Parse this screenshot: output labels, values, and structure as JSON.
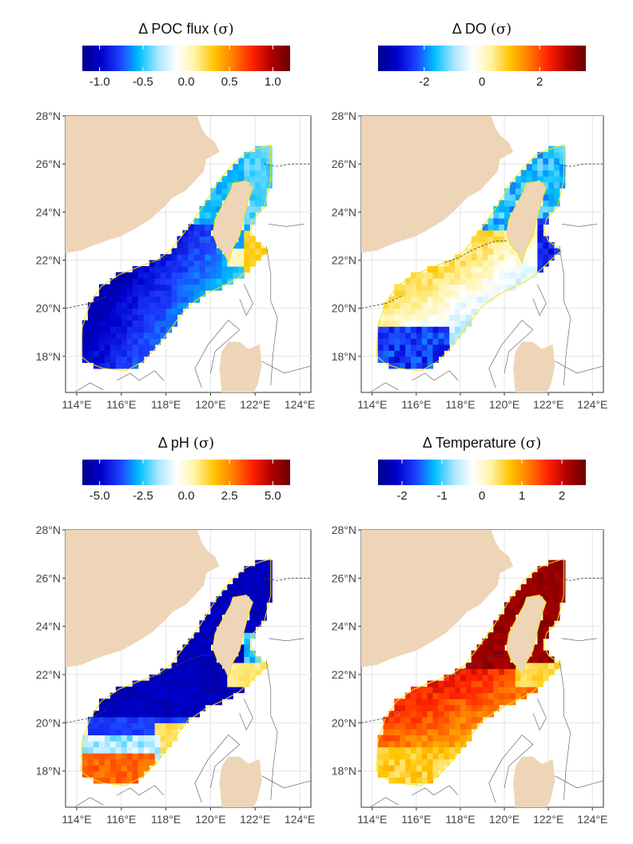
{
  "panels": [
    {
      "id": "poc",
      "title_prefix": "Δ",
      "title_var": "POC flux",
      "title_unit": "(σ)",
      "colorbar": {
        "min": -1.2,
        "max": 1.2,
        "ticks": [
          {
            "v": -1.0,
            "t": "-1.0"
          },
          {
            "v": -0.5,
            "t": "-0.5"
          },
          {
            "v": 0.0,
            "t": "0.0"
          },
          {
            "v": 0.5,
            "t": "0.5"
          },
          {
            "v": 1.0,
            "t": "1.0"
          }
        ]
      },
      "field": {
        "mode": "poc"
      }
    },
    {
      "id": "do",
      "title_prefix": "Δ",
      "title_var": "DO",
      "title_unit": "(σ)",
      "colorbar": {
        "min": -3.6,
        "max": 3.6,
        "ticks": [
          {
            "v": -2,
            "t": "-2"
          },
          {
            "v": 0,
            "t": "0"
          },
          {
            "v": 2,
            "t": "2"
          }
        ]
      },
      "field": {
        "mode": "do"
      }
    },
    {
      "id": "ph",
      "title_prefix": "Δ",
      "title_var": "pH",
      "title_unit": "(σ)",
      "colorbar": {
        "min": -6.0,
        "max": 6.0,
        "ticks": [
          {
            "v": -5.0,
            "t": "-5.0"
          },
          {
            "v": -2.5,
            "t": "-2.5"
          },
          {
            "v": 0.0,
            "t": "0.0"
          },
          {
            "v": 2.5,
            "t": "2.5"
          },
          {
            "v": 5.0,
            "t": "5.0"
          }
        ]
      },
      "field": {
        "mode": "ph"
      }
    },
    {
      "id": "temp",
      "title_prefix": "Δ",
      "title_var": "Temperature",
      "title_unit": "(σ)",
      "colorbar": {
        "min": -2.6,
        "max": 2.6,
        "ticks": [
          {
            "v": -2,
            "t": "-2"
          },
          {
            "v": -1,
            "t": "-1"
          },
          {
            "v": 0,
            "t": "0"
          },
          {
            "v": 1,
            "t": "1"
          },
          {
            "v": 2,
            "t": "2"
          }
        ]
      },
      "field": {
        "mode": "temp"
      }
    }
  ],
  "map_extent": {
    "lon": [
      113.5,
      124.5
    ],
    "lat": [
      16.5,
      28.0
    ]
  },
  "lat_ticks": [
    {
      "v": 18,
      "t": "18°N"
    },
    {
      "v": 20,
      "t": "20°N"
    },
    {
      "v": 22,
      "t": "22°N"
    },
    {
      "v": 24,
      "t": "24°N"
    },
    {
      "v": 26,
      "t": "26°N"
    },
    {
      "v": 28,
      "t": "28°N"
    }
  ],
  "lon_ticks": [
    {
      "v": 114,
      "t": "114°E"
    },
    {
      "v": 116,
      "t": "116°E"
    },
    {
      "v": 118,
      "t": "118°E"
    },
    {
      "v": 120,
      "t": "120°E"
    },
    {
      "v": 122,
      "t": "122°E"
    },
    {
      "v": 124,
      "t": "124°E"
    }
  ],
  "colors": {
    "land": "#eed5b7",
    "grid": "#e4e4e4",
    "outline": "#f5e400",
    "scale": [
      "#00008b",
      "#0000cd",
      "#1e40ff",
      "#00bfff",
      "#a6e6ff",
      "#ffffff",
      "#fff2a0",
      "#ffc400",
      "#ff7b00",
      "#ff2200",
      "#b00000",
      "#6b0000"
    ]
  },
  "geometry": {
    "mainland": [
      [
        113.5,
        28
      ],
      [
        119.4,
        28
      ],
      [
        119.6,
        27.5
      ],
      [
        119.8,
        27.2
      ],
      [
        120.2,
        26.9
      ],
      [
        120.4,
        26.5
      ],
      [
        119.8,
        26.2
      ],
      [
        119.7,
        25.7
      ],
      [
        119.3,
        25.3
      ],
      [
        118.9,
        24.9
      ],
      [
        118.3,
        24.6
      ],
      [
        117.9,
        24.2
      ],
      [
        117.3,
        23.7
      ],
      [
        116.6,
        23.3
      ],
      [
        116.0,
        23.0
      ],
      [
        115.3,
        22.8
      ],
      [
        114.7,
        22.6
      ],
      [
        114.2,
        22.4
      ],
      [
        113.5,
        22.3
      ]
    ],
    "taiwan": [
      [
        121.0,
        25.2
      ],
      [
        121.6,
        25.3
      ],
      [
        121.9,
        25.0
      ],
      [
        121.7,
        24.5
      ],
      [
        121.5,
        23.8
      ],
      [
        121.3,
        23.0
      ],
      [
        121.0,
        22.5
      ],
      [
        120.8,
        21.9
      ],
      [
        120.6,
        22.3
      ],
      [
        120.3,
        22.6
      ],
      [
        120.1,
        23.1
      ],
      [
        120.2,
        23.7
      ],
      [
        120.6,
        24.4
      ],
      [
        120.9,
        24.9
      ]
    ],
    "luzon": [
      [
        120.5,
        16.5
      ],
      [
        120.4,
        17.5
      ],
      [
        120.5,
        18.2
      ],
      [
        120.8,
        18.6
      ],
      [
        121.3,
        18.6
      ],
      [
        121.7,
        18.3
      ],
      [
        122.2,
        18.5
      ],
      [
        122.3,
        17.6
      ],
      [
        122.1,
        16.8
      ],
      [
        121.9,
        16.5
      ]
    ],
    "region": [
      [
        114.2,
        18.0
      ],
      [
        114.25,
        19.2
      ],
      [
        114.6,
        20.2
      ],
      [
        115.1,
        20.9
      ],
      [
        115.9,
        21.4
      ],
      [
        117.0,
        21.8
      ],
      [
        117.6,
        22.0
      ],
      [
        118.2,
        22.4
      ],
      [
        118.7,
        23.0
      ],
      [
        119.1,
        23.5
      ],
      [
        119.5,
        24.0
      ],
      [
        119.9,
        24.6
      ],
      [
        120.3,
        25.2
      ],
      [
        120.9,
        25.9
      ],
      [
        121.5,
        26.4
      ],
      [
        122.0,
        26.6
      ],
      [
        122.7,
        26.8
      ],
      [
        122.7,
        25.3
      ],
      [
        122.4,
        24.2
      ],
      [
        121.9,
        23.7
      ],
      [
        121.8,
        23.2
      ],
      [
        122.0,
        22.8
      ],
      [
        122.6,
        22.4
      ],
      [
        122.1,
        22.0
      ],
      [
        121.3,
        21.3
      ],
      [
        120.5,
        20.9
      ],
      [
        119.8,
        20.6
      ],
      [
        119.0,
        20.1
      ],
      [
        118.5,
        19.5
      ],
      [
        117.7,
        18.5
      ],
      [
        117.0,
        17.8
      ],
      [
        116.2,
        17.4
      ],
      [
        115.2,
        17.5
      ],
      [
        114.6,
        17.7
      ]
    ],
    "dashed": [
      [
        [
          113.5,
          20.0
        ],
        [
          114.6,
          20.2
        ],
        [
          115.3,
          20.5
        ]
      ],
      [
        [
          117.3,
          21.9
        ],
        [
          117.9,
          22.1
        ],
        [
          118.5,
          22.4
        ],
        [
          119.0,
          22.6
        ],
        [
          119.6,
          22.8
        ],
        [
          120.1,
          22.8
        ]
      ],
      [
        [
          122.4,
          26.0
        ],
        [
          123.0,
          25.9
        ],
        [
          123.6,
          26.0
        ],
        [
          124.5,
          26.0
        ]
      ]
    ],
    "contours": [
      [
        [
          119.6,
          16.7
        ],
        [
          119.3,
          17.5
        ],
        [
          119.9,
          18.5
        ],
        [
          120.8,
          19.5
        ],
        [
          121.3,
          19.1
        ],
        [
          120.2,
          18.2
        ],
        [
          120.0,
          17.3
        ]
      ],
      [
        [
          122.5,
          22.6
        ],
        [
          122.7,
          21.4
        ],
        [
          122.7,
          20.3
        ],
        [
          123.0,
          19.6
        ],
        [
          122.8,
          18.1
        ],
        [
          122.7,
          16.8
        ]
      ],
      [
        [
          122.6,
          23.5
        ],
        [
          123.4,
          23.4
        ],
        [
          124.2,
          23.5
        ]
      ],
      [
        [
          121.5,
          21.0
        ],
        [
          121.9,
          20.2
        ],
        [
          121.6,
          19.7
        ],
        [
          121.3,
          20.4
        ]
      ],
      [
        [
          115.8,
          17.0
        ],
        [
          116.4,
          17.3
        ],
        [
          116.8,
          17.0
        ],
        [
          117.5,
          17.4
        ],
        [
          117.9,
          17.0
        ]
      ],
      [
        [
          113.9,
          16.5
        ],
        [
          114.6,
          16.9
        ],
        [
          115.2,
          16.6
        ]
      ],
      [
        [
          122.3,
          17.8
        ],
        [
          123.3,
          17.3
        ],
        [
          124.5,
          17.6
        ]
      ]
    ]
  }
}
